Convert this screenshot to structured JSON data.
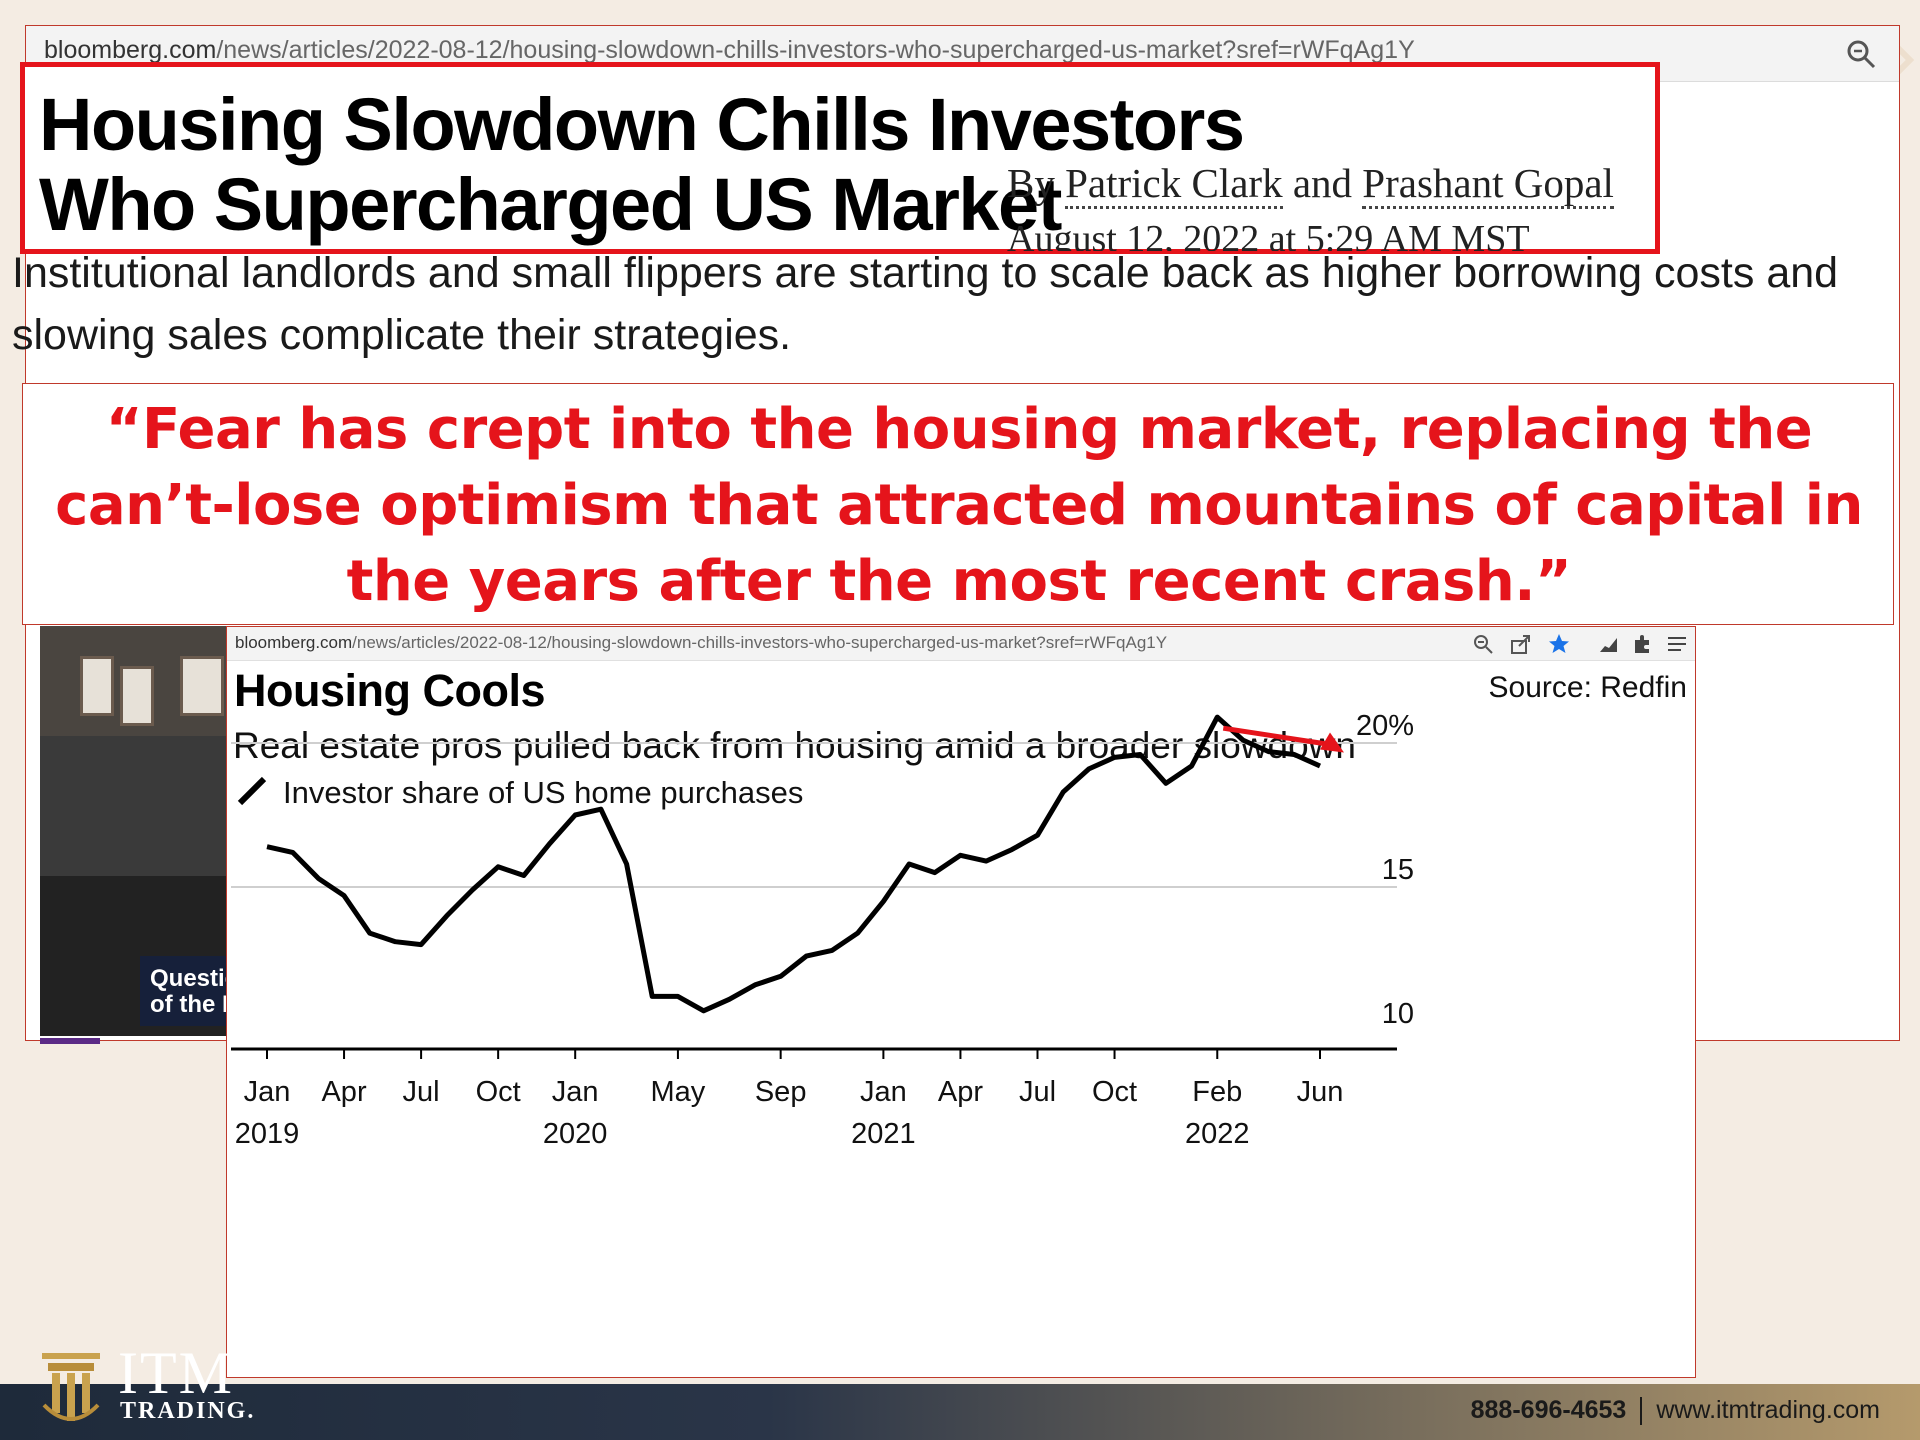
{
  "article": {
    "url_domain": "bloomberg.com",
    "url_path": "/news/articles/2022-08-12/housing-slowdown-chills-investors-who-supercharged-us-market?sref=rWFqAg1Y",
    "headline": "Housing Slowdown Chills Investors Who Supercharged US Market",
    "byline_by": "By",
    "author_1": "Patrick Clark",
    "byline_and": "and",
    "author_2": "Prashant Gopal",
    "date": "August 12, 2022 at 5:29 AM MST",
    "dek": "Institutional landlords and small flippers are starting to scale back as higher borrowing costs and slowing sales complicate their strategies."
  },
  "video": {
    "caption_line1": "Questio",
    "caption_line2": "of the D"
  },
  "quote": {
    "text": "“Fear has crept into the housing market, replacing the can’t-lose optimism that attracted mountains of capital in the years after the most recent crash.”",
    "color": "#e5141b"
  },
  "chart_panel": {
    "url_domain": "bloomberg.com",
    "url_path": "/news/articles/2022-08-12/housing-slowdown-chills-investors-who-supercharged-us-market?sref=rWFqAg1Y",
    "toolbar_icons": [
      "zoom-icon",
      "share-icon",
      "star-icon",
      "chart-icon",
      "extension-icon",
      "menu-icon"
    ]
  },
  "chart_data": {
    "type": "line",
    "title": "Housing Cools",
    "subtitle": "Real estate pros pulled back from housing amid a broader slowdown",
    "source": "Source: Redfin",
    "series": [
      {
        "name": "Investor share of US home purchases",
        "color": "#000000",
        "points": [
          [
            "2019-01",
            16.4
          ],
          [
            "2019-02",
            16.2
          ],
          [
            "2019-03",
            15.3
          ],
          [
            "2019-04",
            14.7
          ],
          [
            "2019-05",
            13.4
          ],
          [
            "2019-06",
            13.1
          ],
          [
            "2019-07",
            13.0
          ],
          [
            "2019-08",
            14.0
          ],
          [
            "2019-09",
            14.9
          ],
          [
            "2019-10",
            15.7
          ],
          [
            "2019-11",
            15.4
          ],
          [
            "2019-12",
            16.5
          ],
          [
            "2020-01",
            17.5
          ],
          [
            "2020-02",
            17.7
          ],
          [
            "2020-03",
            15.8
          ],
          [
            "2020-04",
            11.2
          ],
          [
            "2020-05",
            11.2
          ],
          [
            "2020-06",
            10.7
          ],
          [
            "2020-07",
            11.1
          ],
          [
            "2020-08",
            11.6
          ],
          [
            "2020-09",
            11.9
          ],
          [
            "2020-10",
            12.6
          ],
          [
            "2020-11",
            12.8
          ],
          [
            "2020-12",
            13.4
          ],
          [
            "2021-01",
            14.5
          ],
          [
            "2021-02",
            15.8
          ],
          [
            "2021-03",
            15.5
          ],
          [
            "2021-04",
            16.1
          ],
          [
            "2021-05",
            15.9
          ],
          [
            "2021-06",
            16.3
          ],
          [
            "2021-07",
            16.8
          ],
          [
            "2021-08",
            18.3
          ],
          [
            "2021-09",
            19.1
          ],
          [
            "2021-10",
            19.5
          ],
          [
            "2021-11",
            19.6
          ],
          [
            "2021-12",
            18.6
          ],
          [
            "2022-01",
            19.2
          ],
          [
            "2022-02",
            20.9
          ],
          [
            "2022-03",
            20.1
          ],
          [
            "2022-04",
            19.7
          ],
          [
            "2022-05",
            19.6
          ],
          [
            "2022-06",
            19.2
          ]
        ]
      }
    ],
    "ylim": [
      10,
      21
    ],
    "y_ticks": [
      {
        "value": 10,
        "label": "10"
      },
      {
        "value": 15,
        "label": "15"
      },
      {
        "value": 20,
        "label": "20%"
      }
    ],
    "x_ticks": [
      {
        "value": "2019-01",
        "label": "Jan",
        "year": "2019"
      },
      {
        "value": "2019-04",
        "label": "Apr",
        "year": ""
      },
      {
        "value": "2019-07",
        "label": "Jul",
        "year": ""
      },
      {
        "value": "2019-10",
        "label": "Oct",
        "year": ""
      },
      {
        "value": "2020-01",
        "label": "Jan",
        "year": "2020"
      },
      {
        "value": "2020-05",
        "label": "May",
        "year": ""
      },
      {
        "value": "2020-09",
        "label": "Sep",
        "year": ""
      },
      {
        "value": "2021-01",
        "label": "Jan",
        "year": "2021"
      },
      {
        "value": "2021-04",
        "label": "Apr",
        "year": ""
      },
      {
        "value": "2021-07",
        "label": "Jul",
        "year": ""
      },
      {
        "value": "2021-10",
        "label": "Oct",
        "year": ""
      },
      {
        "value": "2022-02",
        "label": "Feb",
        "year": "2022"
      },
      {
        "value": "2022-06",
        "label": "Jun",
        "year": ""
      }
    ],
    "annotation_arrow": {
      "from": "2022-02",
      "to": "2022-06",
      "color": "#e5141b"
    },
    "grid": "horizontal",
    "legend_placement": "top-left"
  },
  "footer": {
    "phone": "888-696-4653",
    "website": "www.itmtrading.com",
    "logo_name": "ITM",
    "logo_sub": "TRADING."
  }
}
